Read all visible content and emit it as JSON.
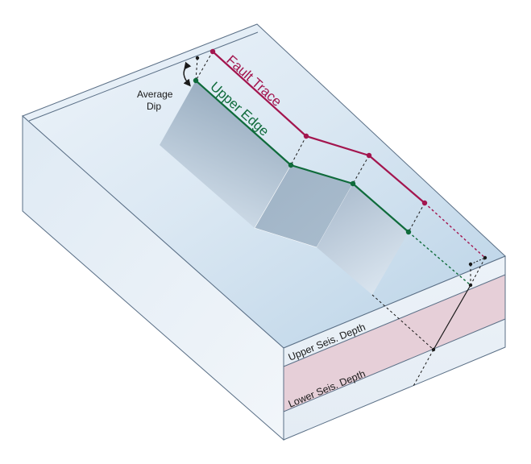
{
  "labels": {
    "fault_trace": "Fault Trace",
    "upper_edge": "Upper Edge",
    "average_dip_line1": "Average",
    "average_dip_line2": "Dip",
    "upper_seis_depth": "Upper Seis. Depth",
    "lower_seis_depth": "Lower Seis. Depth"
  },
  "colors": {
    "fault_trace": "#a3154e",
    "upper_edge": "#0f6b3b",
    "seismogenic_band": "#e6cfd8",
    "outline": "#5a6f86",
    "text": "#1a1a1a"
  }
}
